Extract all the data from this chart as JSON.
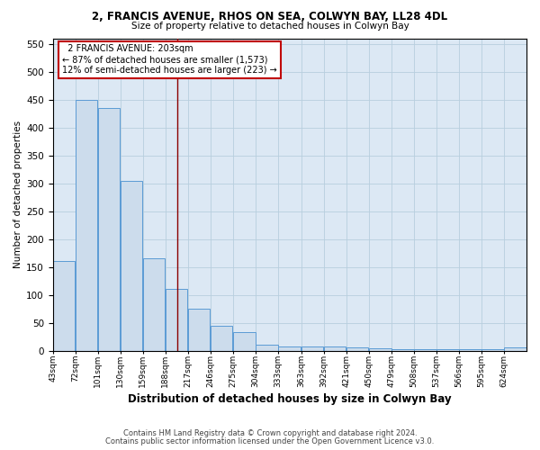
{
  "title1": "2, FRANCIS AVENUE, RHOS ON SEA, COLWYN BAY, LL28 4DL",
  "title2": "Size of property relative to detached houses in Colwyn Bay",
  "xlabel": "Distribution of detached houses by size in Colwyn Bay",
  "ylabel": "Number of detached properties",
  "annotation_title": "2 FRANCIS AVENUE: 203sqm",
  "annotation_line1": "← 87% of detached houses are smaller (1,573)",
  "annotation_line2": "12% of semi-detached houses are larger (223) →",
  "footnote1": "Contains HM Land Registry data © Crown copyright and database right 2024.",
  "footnote2": "Contains public sector information licensed under the Open Government Licence v3.0.",
  "bar_color": "#ccdcec",
  "bar_edge_color": "#5b9bd5",
  "vline_color": "#8b0000",
  "vline_x": 203,
  "bins": [
    43,
    72,
    101,
    130,
    159,
    188,
    217,
    246,
    275,
    304,
    333,
    363,
    392,
    421,
    450,
    479,
    508,
    537,
    566,
    595,
    624
  ],
  "heights": [
    160,
    450,
    435,
    305,
    165,
    110,
    75,
    45,
    33,
    10,
    8,
    8,
    7,
    5,
    4,
    3,
    3,
    3,
    3,
    3,
    5
  ],
  "ylim": [
    0,
    560
  ],
  "yticks": [
    0,
    50,
    100,
    150,
    200,
    250,
    300,
    350,
    400,
    450,
    500,
    550
  ],
  "background_color": "#dce8f4",
  "annotation_box_color": "white",
  "annotation_box_edge": "#c00000",
  "grid_color": "#b8cede"
}
